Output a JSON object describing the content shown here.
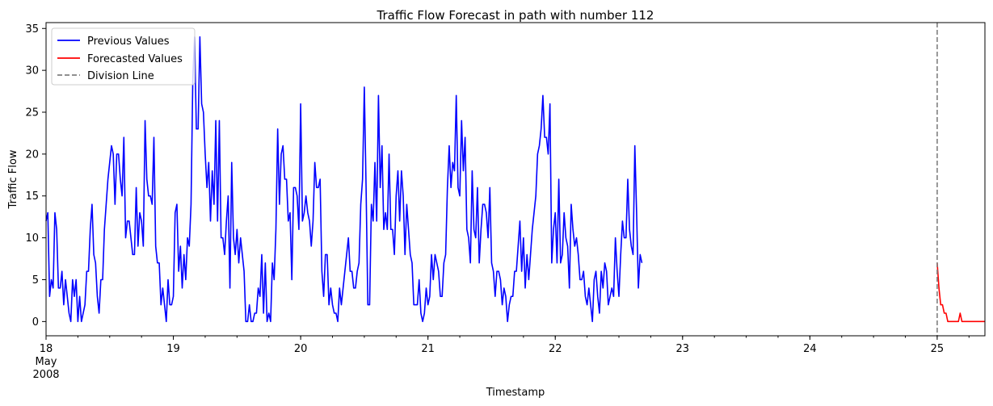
{
  "chart_data": {
    "type": "line",
    "title": "Traffic Flow Forecast in path with number 112",
    "xlabel": "Timestamp",
    "ylabel": "Traffic Flow",
    "xlim": [
      "2008-05-18 00:00",
      "2008-05-25 09:00"
    ],
    "ylim": [
      -1.7,
      35.7
    ],
    "x_ticks": [
      {
        "value": "2008-05-18",
        "label": "18",
        "sublabel": [
          "May",
          "2008"
        ]
      },
      {
        "value": "2008-05-19",
        "label": "19"
      },
      {
        "value": "2008-05-20",
        "label": "20"
      },
      {
        "value": "2008-05-21",
        "label": "21"
      },
      {
        "value": "2008-05-22",
        "label": "22"
      },
      {
        "value": "2008-05-23",
        "label": "23"
      },
      {
        "value": "2008-05-24",
        "label": "24"
      },
      {
        "value": "2008-05-25",
        "label": "25"
      }
    ],
    "y_ticks": [
      0,
      5,
      10,
      15,
      20,
      25,
      30,
      35
    ],
    "grid": false,
    "legend_position": "upper-left",
    "series": [
      {
        "name": "Previous Values",
        "color": "#0000ff",
        "x_start": "2008-05-18 00:00",
        "interval_minutes": 20,
        "values": [
          12,
          13,
          3,
          5,
          4,
          13,
          11,
          4,
          4,
          6,
          2,
          5,
          3,
          1,
          0,
          5,
          3,
          5,
          0,
          3,
          0,
          1,
          2,
          6,
          6,
          11,
          14,
          8,
          7,
          3,
          1,
          5,
          5,
          11,
          14,
          17,
          19,
          21,
          20,
          14,
          20,
          20,
          17,
          15,
          22,
          10,
          12,
          12,
          10,
          8,
          8,
          16,
          9,
          13,
          12,
          9,
          24,
          17,
          15,
          15,
          14,
          22,
          9,
          7,
          7,
          2,
          4,
          2,
          0,
          5,
          2,
          2,
          3,
          13,
          14,
          6,
          9,
          4,
          8,
          5,
          10,
          9,
          14,
          29,
          34,
          23,
          23,
          34,
          26,
          25,
          20,
          16,
          19,
          12,
          18,
          14,
          24,
          12,
          24,
          10,
          10,
          8,
          12,
          15,
          4,
          19,
          10,
          8,
          11,
          7,
          10,
          8,
          6,
          0,
          0,
          2,
          0,
          0,
          1,
          1,
          4,
          3,
          8,
          1,
          7,
          0,
          1,
          0,
          7,
          5,
          11,
          23,
          14,
          20,
          21,
          17,
          17,
          12,
          13,
          5,
          16,
          16,
          15,
          11,
          26,
          12,
          13,
          15,
          13,
          12,
          9,
          12,
          19,
          16,
          16,
          17,
          6,
          3,
          8,
          8,
          2,
          4,
          2,
          1,
          1,
          0,
          4,
          2,
          4,
          6,
          8,
          10,
          6,
          6,
          4,
          4,
          6,
          7,
          14,
          17,
          28,
          16,
          2,
          2,
          14,
          12,
          19,
          12,
          27,
          16,
          21,
          11,
          13,
          11,
          20,
          11,
          11,
          8,
          15,
          18,
          12,
          18,
          15,
          8,
          14,
          11,
          8,
          7,
          2,
          2,
          2,
          5,
          1,
          0,
          1,
          4,
          2,
          3,
          8,
          5,
          8,
          7,
          6,
          3,
          3,
          7,
          8,
          16,
          21,
          16,
          19,
          18,
          27,
          16,
          15,
          24,
          18,
          22,
          11,
          10,
          7,
          18,
          11,
          10,
          16,
          7,
          11,
          14,
          14,
          13,
          10,
          16,
          7,
          6,
          3,
          6,
          6,
          5,
          2,
          4,
          3,
          0,
          2,
          3,
          3,
          6,
          6,
          9,
          12,
          6,
          10,
          4,
          8,
          5,
          8,
          11,
          13,
          15,
          20,
          21,
          23,
          27,
          22,
          22,
          20,
          26,
          7,
          11,
          13,
          7,
          17,
          7,
          8,
          13,
          10,
          9,
          4,
          14,
          11,
          9,
          10,
          8,
          5,
          5,
          6,
          3,
          2,
          4,
          2,
          0,
          5,
          6,
          3,
          1,
          6,
          4,
          7,
          6,
          2,
          3,
          4,
          3,
          10,
          6,
          3,
          8,
          12,
          10,
          10,
          17,
          11,
          9,
          8,
          21,
          13,
          4,
          8,
          7
        ]
      },
      {
        "name": "Forecasted Values",
        "color": "#ff0000",
        "x_start": "2008-05-25 00:00",
        "interval_minutes": 20,
        "values": [
          7,
          4,
          2,
          2,
          1,
          1,
          0,
          0,
          0,
          0,
          0,
          0,
          0,
          1,
          0,
          0,
          0,
          0,
          0,
          0,
          0,
          0,
          0,
          0,
          0,
          0,
          0,
          0
        ]
      }
    ],
    "division_line": {
      "name": "Division Line",
      "x": "2008-05-25 00:00",
      "color": "#808080",
      "style": "dashed"
    }
  }
}
